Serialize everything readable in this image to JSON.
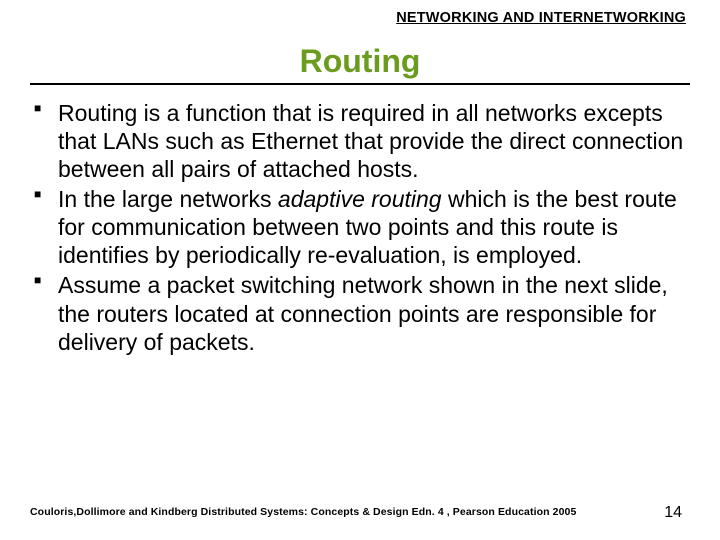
{
  "header": {
    "chapter_label": "NETWORKING AND INTERNETWORKING"
  },
  "title": {
    "text": "Routing",
    "color": "#6b9b1f"
  },
  "bullets": [
    {
      "pre": "Routing is a function that is required in all networks excepts that LANs such as Ethernet that provide the direct connection between all pairs of attached hosts.",
      "italic": "",
      "post": ""
    },
    {
      "pre": "In the large networks ",
      "italic": "adaptive routing",
      "post": " which is the best route for communication between two points and this route is identifies by periodically re-evaluation, is employed."
    },
    {
      "pre": "Assume a packet switching network shown in the next slide, the routers located at connection points are responsible for delivery of packets.",
      "italic": "",
      "post": ""
    }
  ],
  "footer": {
    "citation": "Couloris,Dollimore and Kindberg  Distributed Systems: Concepts & Design  Edn. 4 ,  Pearson Education 2005",
    "page_number": "14"
  }
}
